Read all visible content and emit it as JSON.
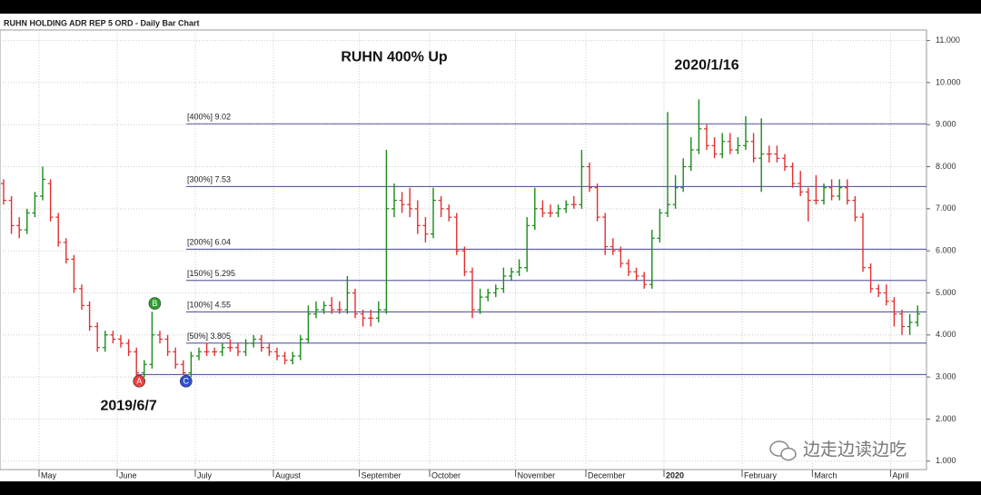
{
  "chart_data": {
    "type": "ohlc",
    "title": "RUHN HOLDING ADR REP 5 ORD - Daily Bar Chart",
    "annotations": [
      {
        "text": "RUHN 400% Up",
        "x": 50,
        "y": 10.6
      },
      {
        "text": "2020/1/16",
        "x": 90,
        "y": 10.4
      },
      {
        "text": "2019/6/7",
        "x": 16,
        "y": 2.3
      }
    ],
    "categories": [
      null,
      null,
      null,
      null,
      null,
      "May",
      null,
      null,
      null,
      null,
      null,
      null,
      null,
      null,
      null,
      "June",
      null,
      null,
      null,
      null,
      null,
      null,
      null,
      null,
      null,
      "July",
      null,
      null,
      null,
      null,
      null,
      null,
      null,
      null,
      null,
      "August",
      null,
      null,
      null,
      null,
      null,
      null,
      null,
      null,
      null,
      null,
      "September",
      null,
      null,
      null,
      null,
      null,
      null,
      null,
      null,
      "October",
      null,
      null,
      null,
      null,
      null,
      null,
      null,
      null,
      null,
      null,
      "November",
      null,
      null,
      null,
      null,
      null,
      null,
      null,
      null,
      "December",
      null,
      null,
      null,
      null,
      null,
      null,
      null,
      null,
      null,
      "2020",
      null,
      null,
      null,
      null,
      null,
      null,
      null,
      null,
      null,
      "February",
      null,
      null,
      null,
      null,
      null,
      null,
      null,
      null,
      "March",
      null,
      null,
      null,
      null,
      null,
      null,
      null,
      null,
      null,
      "April",
      null,
      null,
      null
    ],
    "open": [
      7.6,
      7.2,
      6.6,
      6.5,
      6.9,
      7.3,
      7.6,
      6.8,
      6.2,
      5.8,
      5.1,
      4.7,
      4.2,
      3.7,
      4.0,
      3.9,
      3.8,
      3.6,
      3.1,
      3.3,
      4.0,
      3.9,
      3.6,
      3.3,
      3.1,
      3.5,
      3.6,
      3.6,
      3.6,
      3.7,
      3.7,
      3.6,
      3.8,
      3.9,
      3.7,
      3.6,
      3.5,
      3.4,
      3.5,
      3.9,
      4.5,
      4.6,
      4.7,
      4.6,
      4.6,
      5.0,
      4.5,
      4.4,
      4.4,
      4.6,
      7.0,
      7.2,
      7.1,
      7.0,
      6.6,
      6.4,
      7.2,
      7.0,
      6.8,
      6.0,
      5.5,
      4.6,
      4.9,
      5.0,
      5.1,
      5.4,
      5.5,
      5.6,
      6.6,
      7.0,
      6.9,
      6.9,
      7.0,
      7.1,
      7.1,
      8.0,
      7.5,
      6.8,
      6.1,
      6.0,
      5.7,
      5.5,
      5.4,
      5.2,
      6.3,
      6.9,
      7.1,
      7.5,
      8.0,
      8.4,
      8.9,
      8.5,
      8.3,
      8.6,
      8.4,
      8.5,
      8.6,
      8.2,
      8.3,
      8.3,
      8.2,
      8.0,
      7.6,
      7.4,
      7.2,
      7.2,
      7.5,
      7.3,
      7.5,
      7.2,
      6.8,
      5.6,
      5.1,
      5.0,
      4.8,
      4.5,
      4.2,
      4.3
    ],
    "high": [
      7.7,
      7.3,
      6.8,
      7.0,
      7.4,
      8.0,
      7.7,
      6.9,
      6.3,
      5.9,
      5.2,
      4.8,
      4.3,
      4.1,
      4.1,
      4.0,
      3.9,
      3.7,
      3.4,
      4.55,
      4.1,
      4.0,
      3.7,
      3.4,
      3.6,
      3.7,
      3.8,
      3.7,
      3.8,
      3.9,
      3.8,
      3.9,
      4.0,
      4.0,
      3.8,
      3.7,
      3.6,
      3.6,
      4.0,
      4.7,
      4.8,
      4.8,
      4.9,
      4.8,
      5.4,
      5.1,
      4.6,
      4.6,
      4.8,
      8.4,
      7.6,
      7.4,
      7.5,
      7.2,
      6.8,
      7.5,
      7.3,
      7.1,
      6.9,
      6.1,
      5.6,
      5.1,
      5.1,
      5.2,
      5.6,
      5.6,
      5.8,
      6.8,
      7.5,
      7.2,
      7.1,
      7.1,
      7.2,
      7.3,
      8.4,
      8.1,
      7.6,
      6.9,
      6.3,
      6.1,
      5.8,
      5.6,
      5.5,
      6.5,
      7.0,
      9.3,
      7.8,
      8.2,
      8.7,
      9.6,
      9.0,
      8.7,
      8.8,
      8.8,
      8.7,
      9.2,
      8.8,
      9.15,
      8.5,
      8.5,
      8.3,
      8.1,
      7.9,
      7.5,
      7.8,
      7.6,
      7.7,
      7.7,
      7.7,
      7.3,
      6.9,
      5.7,
      5.2,
      5.2,
      4.9,
      4.6,
      4.5,
      4.7
    ],
    "low": [
      7.1,
      6.4,
      6.3,
      6.4,
      6.8,
      7.2,
      6.7,
      6.1,
      5.7,
      5.0,
      4.6,
      4.1,
      3.6,
      3.6,
      3.8,
      3.7,
      3.5,
      2.95,
      3.0,
      3.2,
      3.8,
      3.5,
      3.2,
      3.05,
      3.0,
      3.4,
      3.5,
      3.5,
      3.5,
      3.6,
      3.5,
      3.5,
      3.7,
      3.6,
      3.5,
      3.4,
      3.3,
      3.3,
      3.4,
      3.8,
      4.4,
      4.5,
      4.5,
      4.5,
      4.5,
      4.4,
      4.2,
      4.2,
      4.3,
      4.5,
      6.8,
      6.9,
      6.8,
      6.4,
      6.2,
      6.3,
      6.8,
      6.7,
      5.9,
      5.4,
      4.4,
      4.5,
      4.8,
      4.9,
      5.0,
      5.3,
      5.4,
      5.5,
      6.5,
      6.8,
      6.8,
      6.8,
      6.9,
      7.0,
      7.0,
      7.4,
      6.7,
      5.9,
      5.9,
      5.6,
      5.4,
      5.3,
      5.1,
      5.1,
      6.2,
      6.8,
      7.0,
      7.4,
      7.9,
      8.3,
      8.4,
      8.2,
      8.2,
      8.3,
      8.3,
      8.4,
      8.1,
      7.4,
      8.1,
      8.1,
      7.9,
      7.5,
      7.3,
      6.7,
      7.1,
      7.1,
      7.2,
      7.2,
      7.1,
      6.7,
      5.5,
      5.0,
      4.9,
      4.7,
      4.2,
      4.0,
      4.0,
      4.2
    ],
    "close": [
      7.2,
      6.6,
      6.5,
      6.9,
      7.3,
      7.7,
      6.8,
      6.2,
      5.8,
      5.1,
      4.7,
      4.2,
      3.7,
      4.0,
      3.9,
      3.8,
      3.6,
      3.1,
      3.3,
      4.0,
      3.9,
      3.6,
      3.3,
      3.1,
      3.5,
      3.6,
      3.6,
      3.6,
      3.7,
      3.7,
      3.6,
      3.8,
      3.9,
      3.7,
      3.6,
      3.5,
      3.4,
      3.5,
      3.9,
      4.5,
      4.6,
      4.7,
      4.6,
      4.6,
      5.0,
      4.5,
      4.4,
      4.4,
      4.6,
      7.0,
      7.2,
      7.1,
      7.0,
      6.6,
      6.4,
      7.2,
      7.0,
      6.8,
      6.0,
      5.5,
      4.6,
      4.9,
      5.0,
      5.1,
      5.4,
      5.5,
      5.6,
      6.6,
      7.0,
      6.9,
      6.9,
      7.0,
      7.1,
      7.1,
      8.0,
      7.5,
      6.8,
      6.1,
      6.0,
      5.7,
      5.5,
      5.4,
      5.2,
      6.3,
      6.9,
      7.1,
      7.5,
      8.0,
      8.4,
      8.9,
      8.5,
      8.3,
      8.6,
      8.4,
      8.5,
      8.6,
      8.2,
      8.3,
      8.3,
      8.2,
      8.0,
      7.6,
      7.4,
      7.2,
      7.2,
      7.5,
      7.3,
      7.5,
      7.2,
      6.8,
      5.6,
      5.1,
      5.0,
      4.8,
      4.5,
      4.2,
      4.3,
      4.5
    ],
    "up_color": "#1a8a1a",
    "down_color": "#e03030",
    "levels": [
      {
        "value": 9.02,
        "label": "[400%] 9.02"
      },
      {
        "value": 7.53,
        "label": "[300%] 7.53"
      },
      {
        "value": 6.04,
        "label": "[200%] 6.04"
      },
      {
        "value": 5.295,
        "label": "[150%] 5.295"
      },
      {
        "value": 4.55,
        "label": "[100%] 4.55"
      },
      {
        "value": 3.805,
        "label": "[50%] 3.805"
      }
    ],
    "base_line": 3.06,
    "level_color": "#2a2a80",
    "points": [
      {
        "label": "A",
        "x": 17,
        "y": 2.9,
        "color": "#e84040"
      },
      {
        "label": "B",
        "x": 19,
        "y": 4.75,
        "color": "#2ca02c"
      },
      {
        "label": "C",
        "x": 23,
        "y": 2.9,
        "color": "#3050d0"
      }
    ],
    "ylim": [
      0.8,
      11.25
    ],
    "yticks": [
      {
        "value": 1,
        "label": "1.000"
      },
      {
        "value": 2,
        "label": "2.000"
      },
      {
        "value": 3,
        "label": "3.000"
      },
      {
        "value": 4,
        "label": "4.000"
      },
      {
        "value": 5,
        "label": "5.000"
      },
      {
        "value": 6,
        "label": "6.000"
      },
      {
        "value": 7,
        "label": "7.000"
      },
      {
        "value": 8,
        "label": "8.000"
      },
      {
        "value": 9,
        "label": "9.000"
      },
      {
        "value": 10,
        "label": "10.000"
      },
      {
        "value": 11,
        "label": "11.000"
      }
    ],
    "grid": true,
    "watermark": "边走边读边吃"
  }
}
